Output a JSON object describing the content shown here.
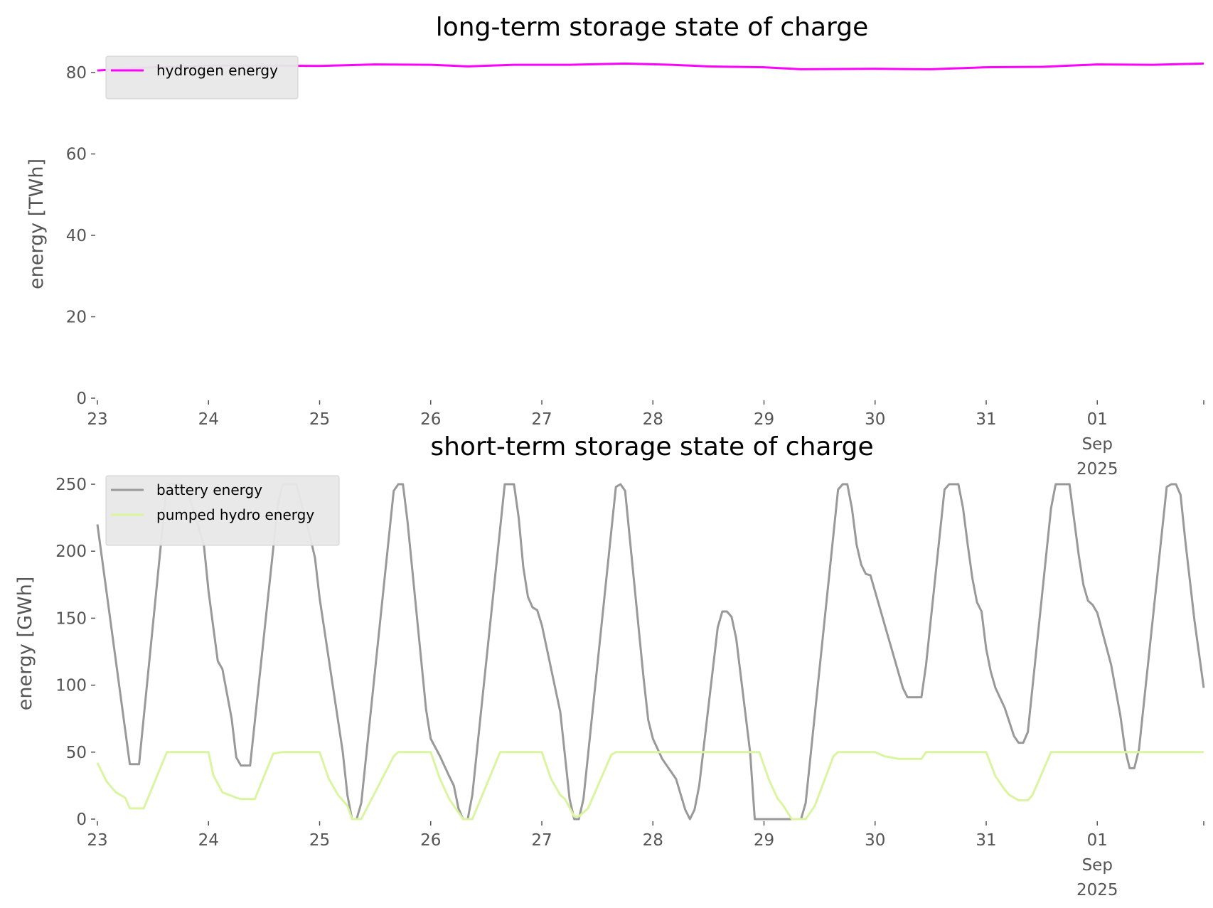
{
  "chart_data": [
    {
      "type": "line",
      "title": "long-term storage state of charge",
      "xlabel": "",
      "ylabel": "energy [TWh]",
      "x_unit": "hours since 2025-08-23 00:00",
      "xlim": [
        0,
        239
      ],
      "ylim": [
        0,
        84
      ],
      "yticks": [
        "0",
        "20",
        "40",
        "60",
        "80"
      ],
      "ytick_values": [
        0,
        20,
        40,
        60,
        80
      ],
      "xticks": [
        "23",
        "24",
        "25",
        "26",
        "27",
        "28",
        "29",
        "30",
        "31",
        "01"
      ],
      "xtick_extra": [
        "Sep",
        "2025"
      ],
      "legend": "top-left",
      "series": [
        {
          "name": "hydrogen energy",
          "color": "#ff00ff",
          "points": [
            [
              0,
              80.5
            ],
            [
              12,
              81.3
            ],
            [
              24,
              81.7
            ],
            [
              36,
              81.7
            ],
            [
              48,
              81.6
            ],
            [
              60,
              82.0
            ],
            [
              72,
              81.9
            ],
            [
              80,
              81.5
            ],
            [
              90,
              81.9
            ],
            [
              102,
              81.9
            ],
            [
              114,
              82.2
            ],
            [
              124,
              81.9
            ],
            [
              132,
              81.5
            ],
            [
              144,
              81.3
            ],
            [
              152,
              80.8
            ],
            [
              168,
              80.9
            ],
            [
              180,
              80.8
            ],
            [
              192,
              81.3
            ],
            [
              204,
              81.4
            ],
            [
              216,
              82.0
            ],
            [
              228,
              81.9
            ],
            [
              239,
              82.2
            ]
          ]
        }
      ]
    },
    {
      "type": "line",
      "title": "short-term storage state of charge",
      "xlabel": "",
      "ylabel": "energy [GWh]",
      "x_unit": "hours since 2025-08-23 00:00",
      "xlim": [
        0,
        239
      ],
      "ylim": [
        0,
        252
      ],
      "yticks": [
        "0",
        "50",
        "100",
        "150",
        "200",
        "250"
      ],
      "ytick_values": [
        0,
        50,
        100,
        150,
        200,
        250
      ],
      "xticks": [
        "23",
        "24",
        "25",
        "26",
        "27",
        "28",
        "29",
        "30",
        "31",
        "01"
      ],
      "xtick_extra": [
        "Sep",
        "2025"
      ],
      "legend": "top-left",
      "series": [
        {
          "name": "battery energy",
          "color": "#999999",
          "points": [
            [
              0,
              220
            ],
            [
              7,
              41
            ],
            [
              9,
              41
            ],
            [
              15,
              250
            ],
            [
              19,
              250
            ],
            [
              23,
              205
            ],
            [
              24,
              170
            ],
            [
              26,
              118
            ],
            [
              27,
              112
            ],
            [
              29,
              75
            ],
            [
              30,
              46
            ],
            [
              31,
              40
            ],
            [
              33,
              40
            ],
            [
              39,
              235
            ],
            [
              40,
              250
            ],
            [
              43,
              250
            ],
            [
              46,
              210
            ],
            [
              47,
              195
            ],
            [
              48,
              165
            ],
            [
              53,
              50
            ],
            [
              54,
              18
            ],
            [
              55,
              0
            ],
            [
              56,
              0
            ],
            [
              57,
              12
            ],
            [
              64,
              245
            ],
            [
              65,
              250
            ],
            [
              66,
              250
            ],
            [
              67,
              222
            ],
            [
              71,
              82
            ],
            [
              72,
              60
            ],
            [
              74,
              47
            ],
            [
              76,
              32
            ],
            [
              77,
              25
            ],
            [
              78,
              8
            ],
            [
              79,
              0
            ],
            [
              80,
              0
            ],
            [
              81,
              18
            ],
            [
              88,
              250
            ],
            [
              90,
              250
            ],
            [
              91,
              225
            ],
            [
              92,
              188
            ],
            [
              93,
              166
            ],
            [
              94,
              158
            ],
            [
              95,
              156
            ],
            [
              96,
              145
            ],
            [
              100,
              80
            ],
            [
              102,
              15
            ],
            [
              103,
              0
            ],
            [
              104,
              0
            ],
            [
              105,
              15
            ],
            [
              112,
              248
            ],
            [
              113,
              250
            ],
            [
              114,
              245
            ],
            [
              118,
              105
            ],
            [
              119,
              74
            ],
            [
              120,
              60
            ],
            [
              122,
              45
            ],
            [
              125,
              30
            ],
            [
              127,
              7
            ],
            [
              128,
              0
            ],
            [
              129,
              7
            ],
            [
              130,
              25
            ],
            [
              134,
              143
            ],
            [
              135,
              155
            ],
            [
              136,
              155
            ],
            [
              137,
              151
            ],
            [
              138,
              135
            ],
            [
              141,
              50
            ],
            [
              142,
              0
            ],
            [
              152,
              0
            ],
            [
              153,
              12
            ],
            [
              160,
              246
            ],
            [
              161,
              250
            ],
            [
              162,
              250
            ],
            [
              163,
              232
            ],
            [
              164,
              205
            ],
            [
              165,
              190
            ],
            [
              166,
              183
            ],
            [
              167,
              182
            ],
            [
              174,
              98
            ],
            [
              175,
              91
            ],
            [
              178,
              91
            ],
            [
              179,
              115
            ],
            [
              183,
              246
            ],
            [
              184,
              250
            ],
            [
              186,
              250
            ],
            [
              187,
              232
            ],
            [
              188,
              205
            ],
            [
              189,
              180
            ],
            [
              190,
              162
            ],
            [
              191,
              155
            ],
            [
              192,
              127
            ],
            [
              193,
              110
            ],
            [
              194,
              98
            ],
            [
              196,
              83
            ],
            [
              198,
              62
            ],
            [
              199,
              57
            ],
            [
              200,
              57
            ],
            [
              201,
              65
            ],
            [
              206,
              232
            ],
            [
              207,
              250
            ],
            [
              210,
              250
            ],
            [
              212,
              197
            ],
            [
              213,
              175
            ],
            [
              214,
              163
            ],
            [
              215,
              160
            ],
            [
              216,
              154
            ],
            [
              219,
              115
            ],
            [
              221,
              77
            ],
            [
              222,
              52
            ],
            [
              223,
              38
            ],
            [
              224,
              38
            ],
            [
              225,
              52
            ],
            [
              231,
              248
            ],
            [
              232,
              250
            ],
            [
              233,
              250
            ],
            [
              234,
              242
            ],
            [
              235,
              208
            ],
            [
              237,
              148
            ],
            [
              239,
              98
            ]
          ]
        },
        {
          "name": "pumped hydro energy",
          "color": "#d9f5a0",
          "points": [
            [
              0,
              42
            ],
            [
              2,
              28
            ],
            [
              4,
              20
            ],
            [
              6,
              16
            ],
            [
              7,
              8
            ],
            [
              10,
              8
            ],
            [
              15,
              50
            ],
            [
              24,
              50
            ],
            [
              25,
              33
            ],
            [
              27,
              20
            ],
            [
              30,
              16
            ],
            [
              31,
              15
            ],
            [
              34,
              15
            ],
            [
              38,
              49
            ],
            [
              40,
              50
            ],
            [
              48,
              50
            ],
            [
              50,
              30
            ],
            [
              52,
              18
            ],
            [
              54,
              10
            ],
            [
              55,
              0
            ],
            [
              57,
              0
            ],
            [
              64,
              47
            ],
            [
              65,
              50
            ],
            [
              72,
              50
            ],
            [
              74,
              30
            ],
            [
              76,
              15
            ],
            [
              77,
              10
            ],
            [
              79,
              0
            ],
            [
              81,
              0
            ],
            [
              87,
              50
            ],
            [
              96,
              50
            ],
            [
              98,
              30
            ],
            [
              100,
              18
            ],
            [
              101,
              15
            ],
            [
              103,
              2
            ],
            [
              104,
              2
            ],
            [
              106,
              8
            ],
            [
              111,
              48
            ],
            [
              112,
              50
            ],
            [
              143,
              50
            ],
            [
              145,
              30
            ],
            [
              147,
              15
            ],
            [
              148,
              11
            ],
            [
              150,
              0
            ],
            [
              153,
              0
            ],
            [
              155,
              10
            ],
            [
              159,
              47
            ],
            [
              160,
              50
            ],
            [
              168,
              50
            ],
            [
              170,
              47
            ],
            [
              173,
              45
            ],
            [
              178,
              45
            ],
            [
              179,
              50
            ],
            [
              192,
              50
            ],
            [
              194,
              32
            ],
            [
              196,
              22
            ],
            [
              197,
              18
            ],
            [
              199,
              14
            ],
            [
              201,
              14
            ],
            [
              202,
              18
            ],
            [
              206,
              50
            ],
            [
              239,
              50
            ]
          ]
        }
      ]
    }
  ]
}
